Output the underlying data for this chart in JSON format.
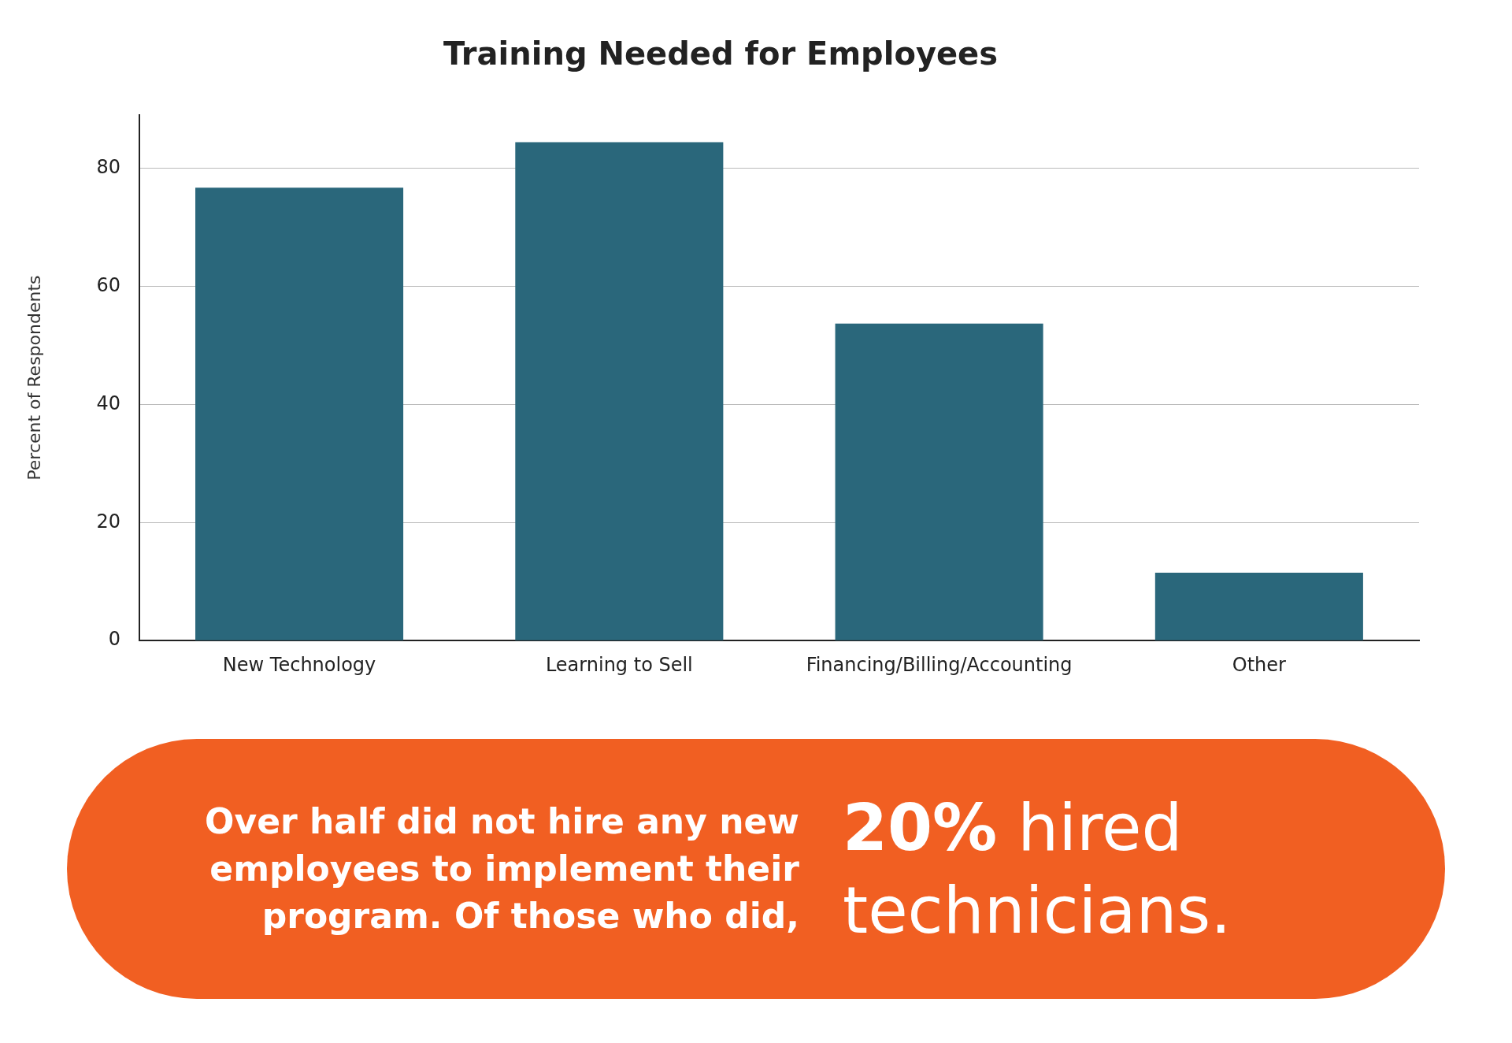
{
  "chart_data": {
    "type": "bar",
    "title": "Training Needed for Employees",
    "ylabel": "Percent of Respondents",
    "categories": [
      "New Technology",
      "Learning to Sell",
      "Financing/Billing/Accounting",
      "Other"
    ],
    "values": [
      76.7,
      84.4,
      53.7,
      11.5
    ],
    "color": "#2a677b",
    "ylim": [
      0,
      89
    ],
    "yticks": [
      0,
      20,
      40,
      60,
      80
    ],
    "grid": "y",
    "legend": false,
    "annotations": [
      "Over half did not hire any new employees to implement their program. Of those who did,",
      "20% hired technicians."
    ]
  }
}
